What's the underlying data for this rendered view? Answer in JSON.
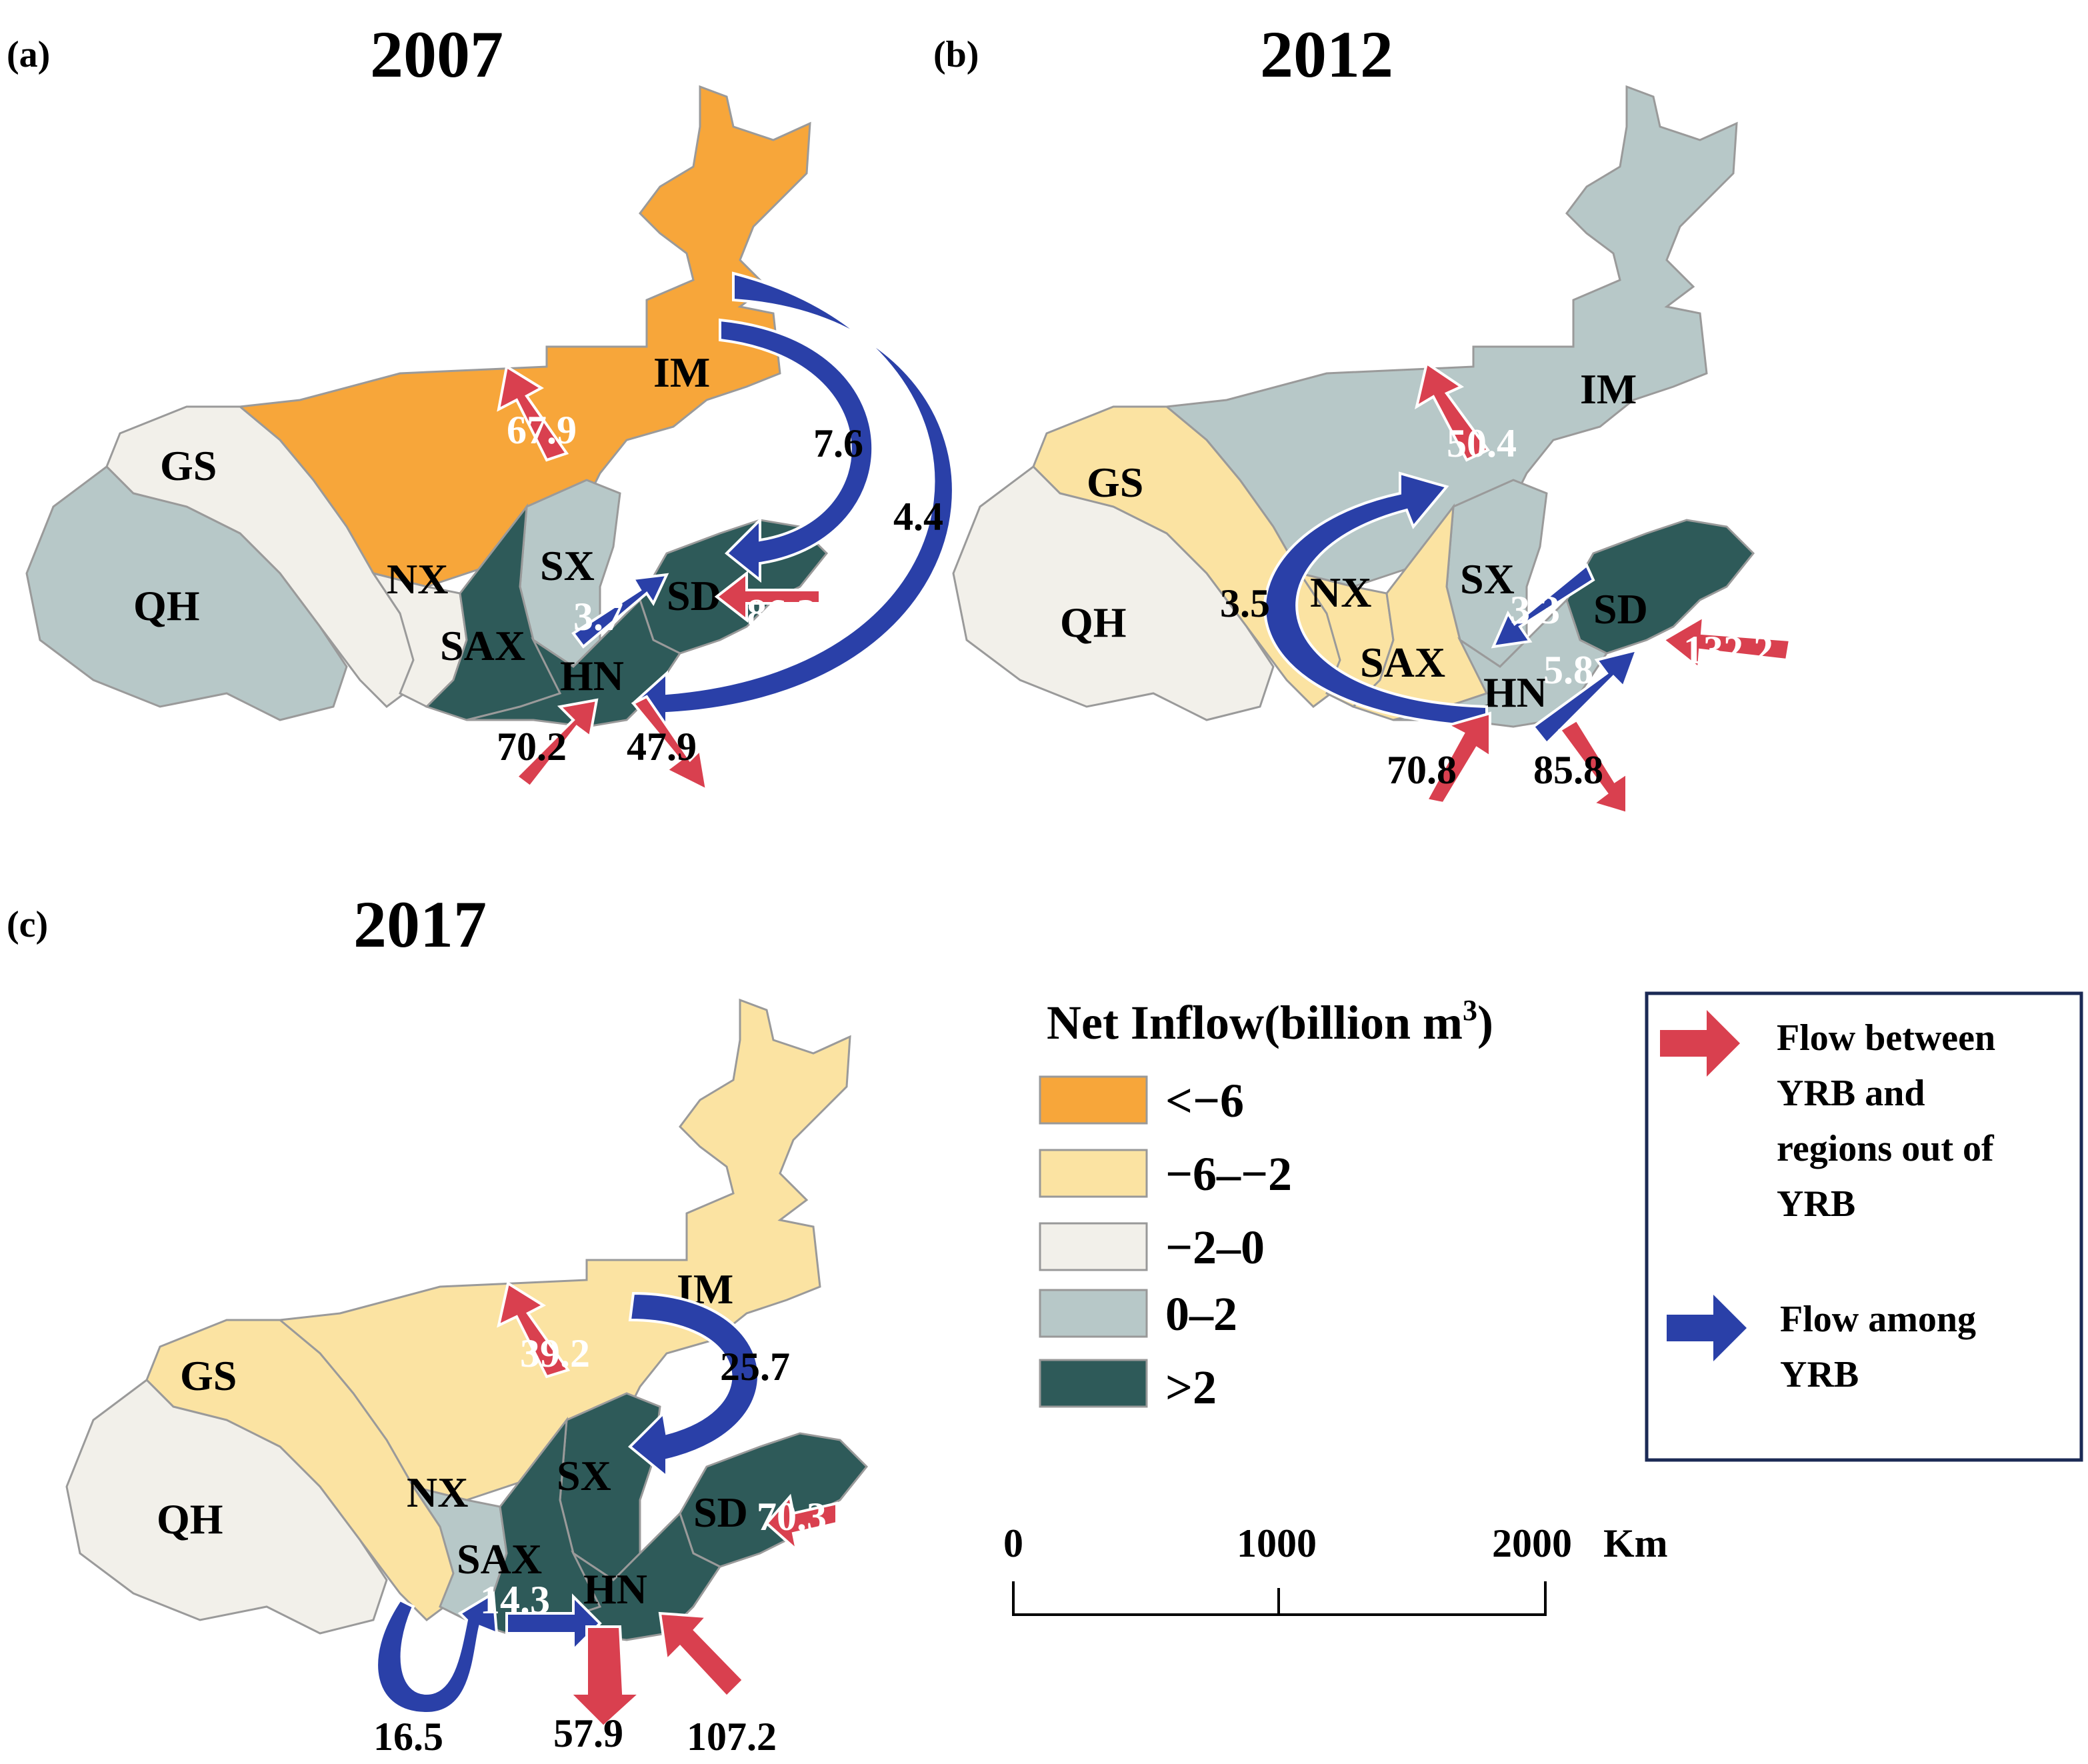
{
  "colors": {
    "lt_neg6": "#f7a63a",
    "neg6_neg2": "#fbe3a2",
    "neg2_0": "#f2f0ea",
    "zero_2": "#b7c8c8",
    "gt_2": "#2e5a59",
    "red_arrow": "#d9404f",
    "blue_arrow": "#2a40a8"
  },
  "panels": [
    {
      "label": "(a)",
      "year": "2007",
      "provinces": {
        "IM": "IM",
        "GS": "GS",
        "QH": "QH",
        "NX": "NX",
        "SX": "SX",
        "SD": "SD",
        "SAX": "SAX",
        "HN": "HN"
      },
      "fill_class": {
        "IM": "lt_neg6",
        "GS": "neg2_0",
        "QH": "zero_2",
        "NX": "neg2_0",
        "SX": "zero_2",
        "SD": "gt_2",
        "SAX": "gt_2",
        "HN": "gt_2"
      },
      "flows": [
        "67.9",
        "7.6",
        "4.4",
        "3.7",
        "86.2",
        "70.2",
        "47.9"
      ]
    },
    {
      "label": "(b)",
      "year": "2012",
      "provinces": {
        "IM": "IM",
        "GS": "GS",
        "QH": "QH",
        "NX": "NX",
        "SX": "SX",
        "SD": "SD",
        "SAX": "SAX",
        "HN": "HN"
      },
      "fill_class": {
        "IM": "zero_2",
        "GS": "neg6_neg2",
        "QH": "neg2_0",
        "NX": "neg6_neg2",
        "SX": "zero_2",
        "SD": "gt_2",
        "SAX": "neg6_neg2",
        "HN": "zero_2"
      },
      "flows": [
        "50.4",
        "3.5",
        "3.3",
        "5.8",
        "132.2",
        "70.8",
        "85.8"
      ]
    },
    {
      "label": "(c)",
      "year": "2017",
      "provinces": {
        "IM": "IM",
        "GS": "GS",
        "QH": "QH",
        "NX": "NX",
        "SX": "SX",
        "SD": "SD",
        "SAX": "SAX",
        "HN": "HN"
      },
      "fill_class": {
        "IM": "neg6_neg2",
        "GS": "neg6_neg2",
        "QH": "neg2_0",
        "NX": "zero_2",
        "SX": "gt_2",
        "SD": "gt_2",
        "SAX": "gt_2",
        "HN": "gt_2"
      },
      "flows": [
        "39.2",
        "25.7",
        "70.3",
        "14.3",
        "16.5",
        "57.9",
        "107.2"
      ]
    }
  ],
  "legend": {
    "title_main": "Net Inflow(billion m",
    "title_sup": "3",
    "title_close": ")",
    "items": [
      "<−6",
      "−6–−2",
      "−2–0",
      "0–2",
      ">2"
    ]
  },
  "arrow_legend": {
    "red_lines": [
      "Flow between",
      "YRB and",
      "regions out of",
      "YRB"
    ],
    "blue_lines": [
      "Flow among",
      "YRB"
    ]
  },
  "scale": {
    "ticks": [
      "0",
      "1000",
      "2000"
    ],
    "unit": "Km"
  }
}
